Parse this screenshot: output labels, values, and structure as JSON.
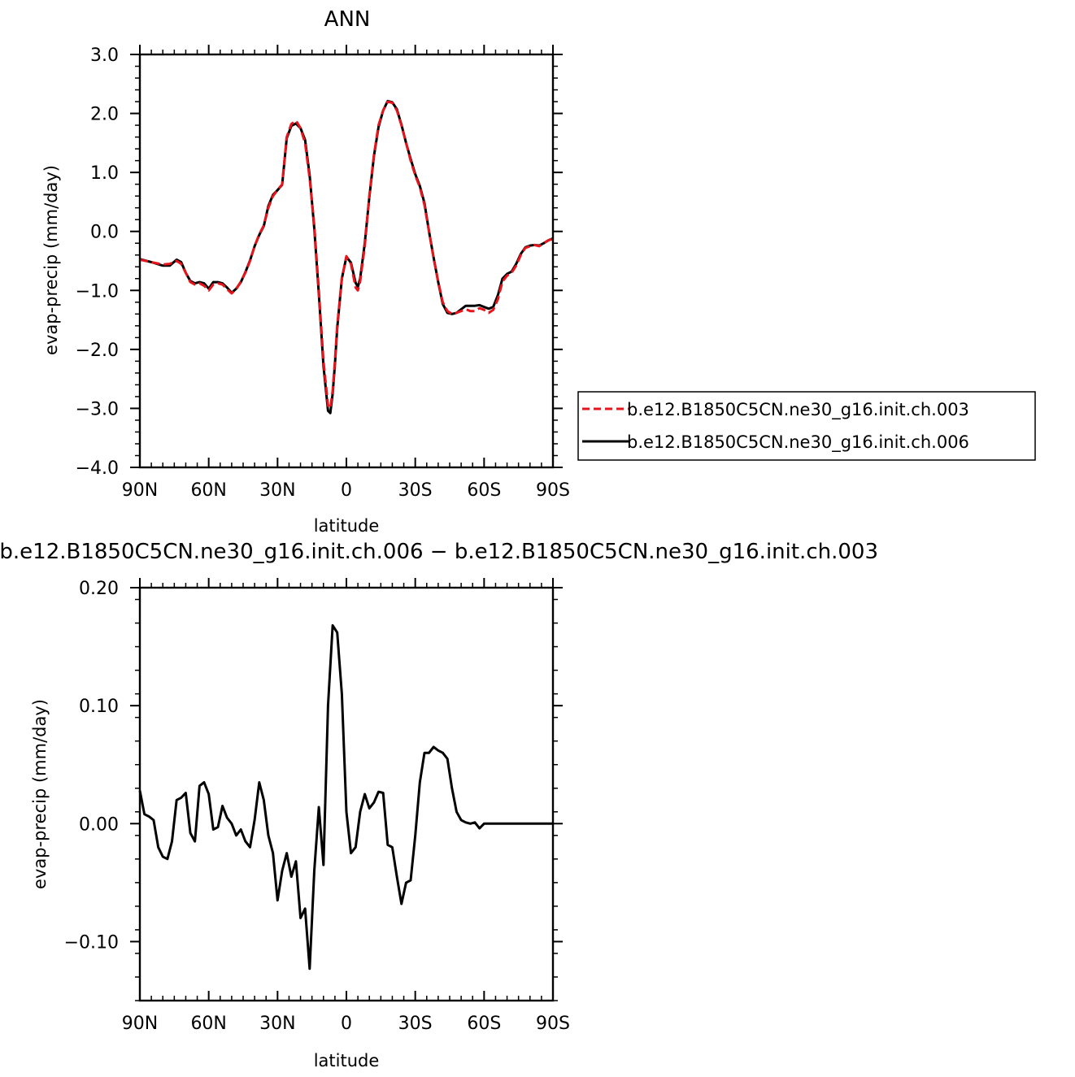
{
  "colors": {
    "series_a": "#e8141c",
    "series_b": "#000000",
    "axis": "#000000"
  },
  "chart_data": [
    {
      "type": "line",
      "title": "ANN",
      "xlabel": "latitude",
      "ylabel": "evap-precip (mm/day)",
      "xlim": [
        -90,
        90
      ],
      "ylim": [
        -4.0,
        3.0
      ],
      "xticks": [
        -90,
        -60,
        -30,
        0,
        30,
        60,
        90
      ],
      "xtick_labels": [
        "90N",
        "60N",
        "30N",
        "0",
        "30S",
        "60S",
        "90S"
      ],
      "yticks": [
        -4.0,
        -3.0,
        -2.0,
        -1.0,
        0.0,
        1.0,
        2.0,
        3.0
      ],
      "ytick_labels": [
        "−4.0",
        "−3.0",
        "−2.0",
        "−1.0",
        "0.0",
        "1.0",
        "2.0",
        "3.0"
      ],
      "legend": {
        "placement": "right of plot, lower"
      },
      "series": [
        {
          "name": "b.e12.B1850C5CN.ne30_g16.init.ch.003",
          "style": "dashed",
          "color": "#e8141c",
          "x": [
            -90,
            -85,
            -80,
            -77,
            -74,
            -72,
            -70,
            -68,
            -66,
            -64,
            -62,
            -60,
            -58,
            -56,
            -54,
            -52,
            -50,
            -48,
            -46,
            -44,
            -42,
            -40,
            -38,
            -36,
            -34,
            -32,
            -30,
            -28,
            -26,
            -24,
            -22,
            -20,
            -18,
            -16,
            -14,
            -12,
            -10,
            -8,
            -7,
            -6,
            -5,
            -4,
            -2,
            0,
            2,
            4,
            5,
            6,
            8,
            10,
            12,
            14,
            16,
            18,
            20,
            22,
            24,
            26,
            28,
            30,
            32,
            34,
            36,
            38,
            40,
            42,
            44,
            46,
            48,
            50,
            52,
            54,
            56,
            58,
            60,
            62,
            64,
            66,
            68,
            70,
            72,
            74,
            76,
            78,
            80,
            82,
            84,
            86,
            88,
            90
          ],
          "y": [
            -0.48,
            -0.52,
            -0.56,
            -0.55,
            -0.5,
            -0.55,
            -0.7,
            -0.86,
            -0.9,
            -0.88,
            -0.92,
            -1.0,
            -0.9,
            -0.88,
            -0.9,
            -0.98,
            -1.05,
            -0.98,
            -0.85,
            -0.7,
            -0.5,
            -0.25,
            -0.05,
            0.1,
            0.4,
            0.6,
            0.7,
            0.8,
            1.6,
            1.82,
            1.88,
            1.75,
            1.5,
            0.9,
            0.1,
            -1.0,
            -2.2,
            -2.95,
            -3.0,
            -2.7,
            -2.2,
            -1.6,
            -0.8,
            -0.42,
            -0.55,
            -0.95,
            -1.0,
            -0.85,
            -0.25,
            0.6,
            1.3,
            1.8,
            2.05,
            2.2,
            2.18,
            2.05,
            1.8,
            1.5,
            1.2,
            0.95,
            0.75,
            0.45,
            0.0,
            -0.45,
            -0.85,
            -1.2,
            -1.35,
            -1.4,
            -1.38,
            -1.35,
            -1.32,
            -1.35,
            -1.35,
            -1.3,
            -1.33,
            -1.38,
            -1.33,
            -1.15,
            -0.85,
            -0.75,
            -0.7,
            -0.58,
            -0.4,
            -0.28,
            -0.25,
            -0.23,
            -0.25,
            -0.2,
            -0.15,
            -0.13
          ]
        },
        {
          "name": "b.e12.B1850C5CN.ne30_g16.init.ch.006",
          "style": "solid",
          "color": "#000000",
          "x": [
            -90,
            -85,
            -80,
            -77,
            -74,
            -72,
            -70,
            -68,
            -66,
            -64,
            -62,
            -60,
            -58,
            -56,
            -54,
            -52,
            -50,
            -48,
            -46,
            -44,
            -42,
            -40,
            -38,
            -36,
            -34,
            -32,
            -30,
            -28,
            -26,
            -24,
            -22,
            -20,
            -18,
            -16,
            -14,
            -12,
            -10,
            -8,
            -7,
            -6,
            -5,
            -4,
            -2,
            0,
            2,
            4,
            5,
            6,
            8,
            10,
            12,
            14,
            16,
            18,
            20,
            22,
            24,
            26,
            28,
            30,
            32,
            34,
            36,
            38,
            40,
            42,
            44,
            46,
            48,
            50,
            52,
            54,
            56,
            58,
            60,
            62,
            64,
            66,
            68,
            70,
            72,
            74,
            76,
            78,
            80,
            82,
            84,
            86,
            88,
            90
          ],
          "y": [
            -0.47,
            -0.52,
            -0.58,
            -0.58,
            -0.48,
            -0.52,
            -0.7,
            -0.84,
            -0.88,
            -0.86,
            -0.88,
            -0.97,
            -0.86,
            -0.86,
            -0.88,
            -0.95,
            -1.04,
            -0.97,
            -0.86,
            -0.69,
            -0.49,
            -0.25,
            -0.06,
            0.09,
            0.43,
            0.62,
            0.7,
            0.79,
            1.58,
            1.79,
            1.83,
            1.75,
            1.55,
            0.95,
            0.05,
            -1.06,
            -2.28,
            -3.04,
            -3.08,
            -2.75,
            -2.25,
            -1.64,
            -0.8,
            -0.43,
            -0.53,
            -0.87,
            -0.94,
            -0.8,
            -0.2,
            0.58,
            1.28,
            1.77,
            2.05,
            2.21,
            2.19,
            2.07,
            1.81,
            1.5,
            1.23,
            0.97,
            0.77,
            0.48,
            0.0,
            -0.44,
            -0.86,
            -1.23,
            -1.38,
            -1.4,
            -1.38,
            -1.32,
            -1.26,
            -1.26,
            -1.26,
            -1.25,
            -1.28,
            -1.31,
            -1.28,
            -1.08,
            -0.8,
            -0.72,
            -0.68,
            -0.55,
            -0.38,
            -0.27,
            -0.24,
            -0.23,
            -0.24,
            -0.2,
            -0.15,
            -0.12
          ]
        }
      ]
    },
    {
      "type": "line",
      "title": "b.e12.B1850C5CN.ne30_g16.init.ch.006 − b.e12.B1850C5CN.ne30_g16.init.ch.003",
      "xlabel": "latitude",
      "ylabel": "evap-precip (mm/day)",
      "xlim": [
        -90,
        90
      ],
      "ylim": [
        -0.15,
        0.2
      ],
      "xticks": [
        -90,
        -60,
        -30,
        0,
        30,
        60,
        90
      ],
      "xtick_labels": [
        "90N",
        "60N",
        "30N",
        "0",
        "30S",
        "60S",
        "90S"
      ],
      "yticks": [
        -0.1,
        0.0,
        0.1,
        0.2
      ],
      "ytick_labels": [
        "−0.10",
        "0.00",
        "0.10",
        "0.20"
      ],
      "series": [
        {
          "style": "solid",
          "color": "#000000",
          "x": [
            -90,
            -88,
            -86,
            -84,
            -82,
            -80,
            -78,
            -76,
            -74,
            -72,
            -70,
            -68,
            -66,
            -64,
            -62,
            -60,
            -58,
            -56,
            -54,
            -52,
            -50,
            -48,
            -46,
            -44,
            -42,
            -40,
            -38,
            -36,
            -34,
            -32,
            -30,
            -28,
            -26,
            -24,
            -22,
            -20,
            -18,
            -16,
            -14,
            -12,
            -10,
            -8,
            -6,
            -4,
            -2,
            0,
            2,
            4,
            6,
            8,
            10,
            12,
            14,
            16,
            18,
            20,
            22,
            24,
            26,
            28,
            30,
            32,
            34,
            36,
            38,
            40,
            42,
            44,
            46,
            48,
            50,
            52,
            54,
            56,
            58,
            60,
            62,
            64,
            66,
            68,
            70,
            72,
            74,
            76,
            78,
            80,
            82,
            84,
            86,
            88,
            90
          ],
          "y": [
            0.028,
            0.008,
            0.006,
            0.003,
            -0.02,
            -0.028,
            -0.03,
            -0.015,
            0.02,
            0.022,
            0.026,
            -0.008,
            -0.015,
            0.032,
            0.035,
            0.025,
            -0.005,
            -0.003,
            0.015,
            0.005,
            0.0,
            -0.01,
            -0.005,
            -0.015,
            -0.02,
            0.003,
            0.035,
            0.02,
            -0.01,
            -0.025,
            -0.065,
            -0.04,
            -0.025,
            -0.045,
            -0.032,
            -0.08,
            -0.072,
            -0.123,
            -0.04,
            0.014,
            -0.035,
            0.1,
            0.168,
            0.162,
            0.11,
            0.01,
            -0.025,
            -0.02,
            0.01,
            0.025,
            0.013,
            0.018,
            0.027,
            0.026,
            -0.018,
            -0.02,
            -0.045,
            -0.068,
            -0.05,
            -0.048,
            -0.01,
            0.035,
            0.06,
            0.06,
            0.065,
            0.062,
            0.06,
            0.055,
            0.03,
            0.01,
            0.003,
            0.001,
            0.0,
            0.001,
            -0.004,
            0.0,
            0.0,
            0.0,
            0.0,
            0.0,
            0.0,
            0.0,
            0.0,
            0.0,
            0.0,
            0.0,
            0.0,
            0.0,
            0.0,
            0.0,
            0.0
          ]
        }
      ]
    }
  ]
}
